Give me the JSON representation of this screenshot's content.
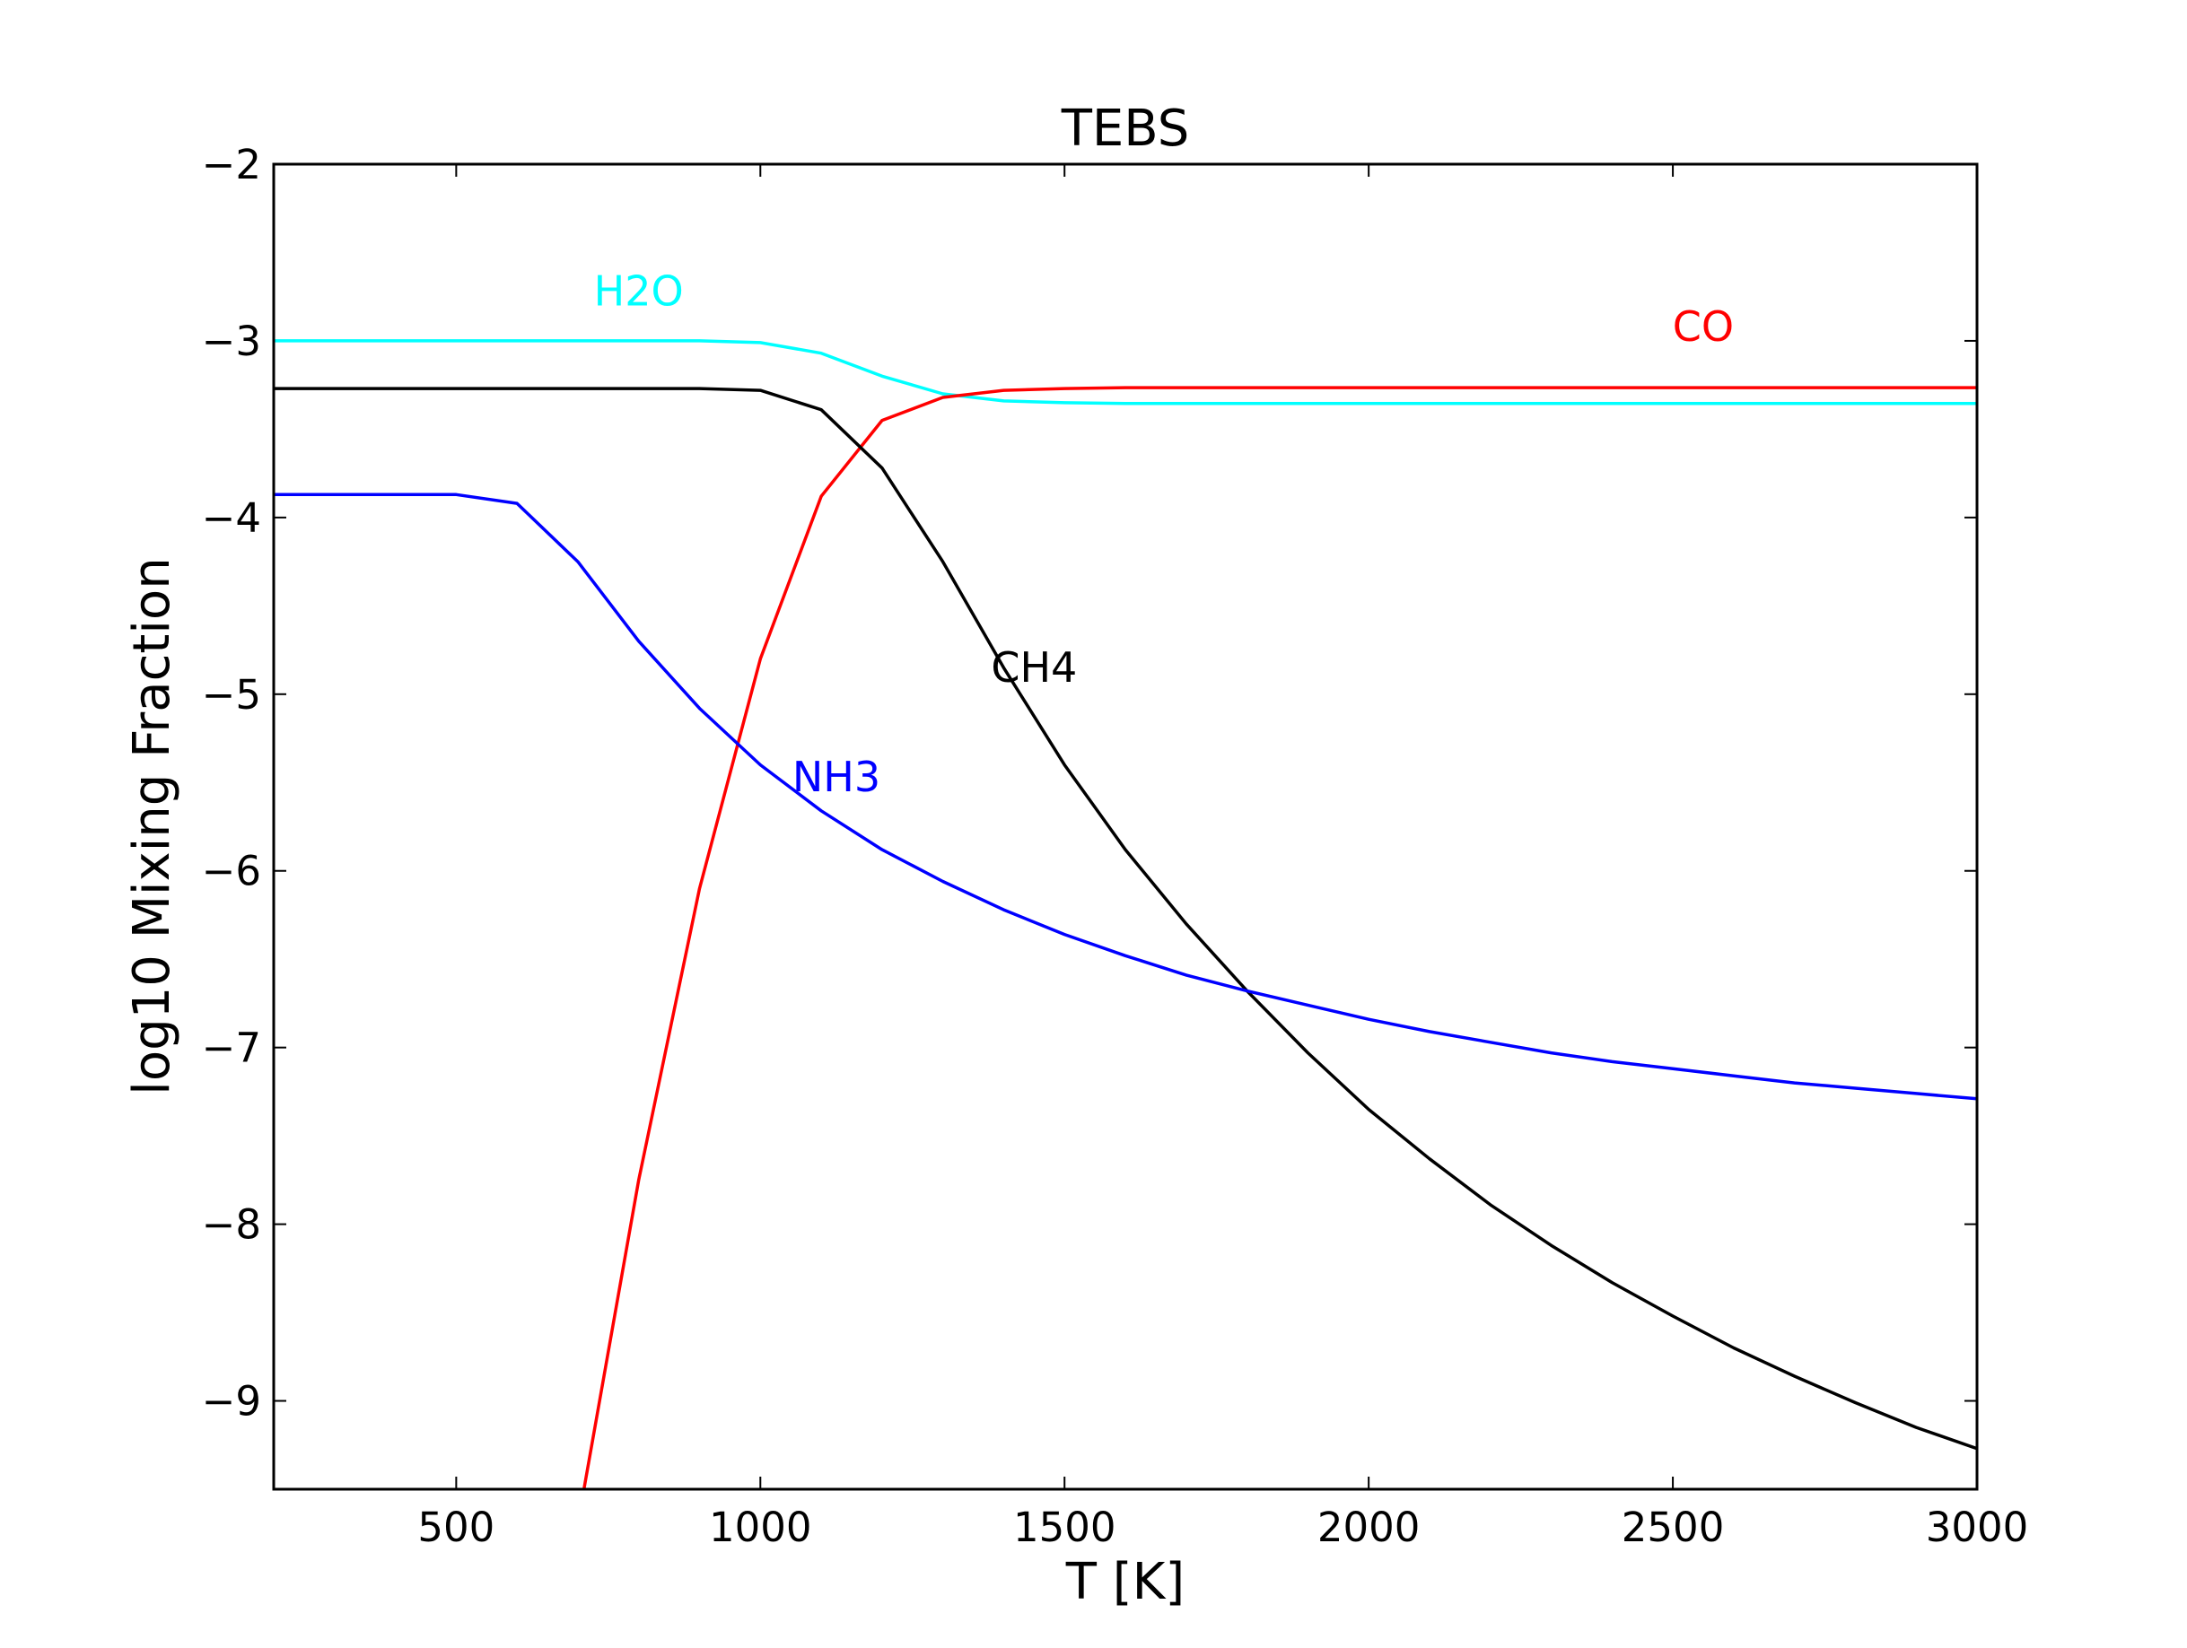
{
  "chart_data": {
    "type": "line",
    "title": "TEBS",
    "xlabel": "T [K]",
    "ylabel": "log10 Mixing Fraction",
    "xlim": [
      200,
      3000
    ],
    "ylim": [
      -9.5,
      -2
    ],
    "x_ticks": [
      500,
      1000,
      1500,
      2000,
      2500,
      3000
    ],
    "y_ticks": [
      -2,
      -3,
      -4,
      -5,
      -6,
      -7,
      -8,
      -9
    ],
    "x_tick_labels": [
      "500",
      "1000",
      "1500",
      "2000",
      "2500",
      "3000"
    ],
    "y_tick_labels": [
      "−2",
      "−3",
      "−4",
      "−5",
      "−6",
      "−7",
      "−8",
      "−9"
    ],
    "grid": false,
    "legend": "none",
    "series": [
      {
        "name": "H2O",
        "color": "#00ffff",
        "label_at": [
          800,
          -2.8
        ],
        "x": [
          200,
          500,
          600,
          700,
          800,
          900,
          1000,
          1100,
          1200,
          1300,
          1400,
          1500,
          1600,
          1800,
          2000,
          2500,
          3000
        ],
        "y": [
          -3.0,
          -3.0,
          -3.0,
          -3.0,
          -3.0,
          -3.0,
          -3.01,
          -3.07,
          -3.2,
          -3.3,
          -3.34,
          -3.35,
          -3.355,
          -3.355,
          -3.355,
          -3.355,
          -3.355
        ]
      },
      {
        "name": "CO",
        "color": "#ff0000",
        "label_at": [
          2550,
          -3.0
        ],
        "x": [
          710,
          800,
          900,
          1000,
          1100,
          1200,
          1300,
          1400,
          1500,
          1600,
          2000,
          2500,
          3000
        ],
        "y": [
          -9.5,
          -7.75,
          -6.1,
          -4.8,
          -3.88,
          -3.45,
          -3.32,
          -3.28,
          -3.27,
          -3.265,
          -3.265,
          -3.265,
          -3.265
        ]
      },
      {
        "name": "CH4",
        "color": "#000000",
        "label_at": [
          1450,
          -4.93
        ],
        "x": [
          200,
          500,
          600,
          700,
          800,
          900,
          1000,
          1100,
          1200,
          1300,
          1400,
          1500,
          1600,
          1700,
          1800,
          1900,
          2000,
          2100,
          2200,
          2300,
          2400,
          2500,
          2600,
          2700,
          2800,
          2900,
          3000
        ],
        "y": [
          -3.27,
          -3.27,
          -3.27,
          -3.27,
          -3.27,
          -3.27,
          -3.28,
          -3.39,
          -3.72,
          -4.25,
          -4.85,
          -5.4,
          -5.88,
          -6.3,
          -6.68,
          -7.03,
          -7.35,
          -7.63,
          -7.89,
          -8.12,
          -8.33,
          -8.52,
          -8.7,
          -8.86,
          -9.01,
          -9.15,
          -9.27
        ]
      },
      {
        "name": "NH3",
        "color": "#0000ff",
        "label_at": [
          1125,
          -5.55
        ],
        "x": [
          200,
          300,
          400,
          500,
          600,
          700,
          800,
          900,
          1000,
          1100,
          1200,
          1300,
          1400,
          1500,
          1600,
          1700,
          1800,
          1900,
          2000,
          2100,
          2200,
          2300,
          2400,
          2500,
          2600,
          2700,
          2800,
          2900,
          3000
        ],
        "y": [
          -3.87,
          -3.87,
          -3.87,
          -3.87,
          -3.92,
          -4.25,
          -4.7,
          -5.08,
          -5.4,
          -5.66,
          -5.88,
          -6.06,
          -6.22,
          -6.36,
          -6.48,
          -6.59,
          -6.68,
          -6.76,
          -6.84,
          -6.91,
          -6.97,
          -7.03,
          -7.08,
          -7.12,
          -7.16,
          -7.2,
          -7.23,
          -7.26,
          -7.29
        ]
      }
    ]
  }
}
